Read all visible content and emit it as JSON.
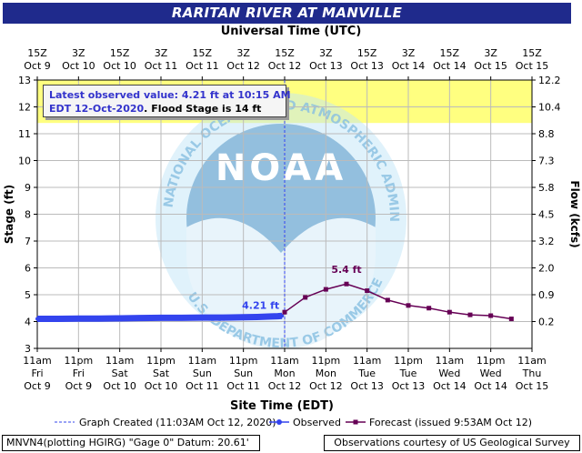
{
  "header": {
    "title": "RARITAN RIVER AT MANVILLE",
    "top_axis_title": "Universal Time (UTC)",
    "bottom_axis_title": "Site Time (EDT)"
  },
  "colors": {
    "title_bar": "#1f2a8c",
    "observed": "#3344ee",
    "forecast": "#660055",
    "flood_band": "#ffff80",
    "noaa_watermark": "#bfe3f5"
  },
  "latest": {
    "line1": "Latest observed value: 4.21 ft at 10:15 AM",
    "line2_date": "EDT 12-Oct-2020",
    "line2_sep": ". ",
    "flood_stage": "Flood Stage is 14 ft"
  },
  "legend": {
    "graph_created": "Graph Created (11:03AM Oct 12, 2020)",
    "observed": "Observed",
    "forecast": "Forecast (issued 9:53AM Oct 12)"
  },
  "footer": {
    "left": "MNVN4(plotting HGIRG) \"Gage 0\" Datum: 20.61'",
    "right": "Observations courtesy of US Geological Survey"
  },
  "watermark": {
    "logo_text": "NOAA",
    "ring_text": "NATIONAL OCEANIC AND ATMOSPHERIC ADMINISTRATION",
    "bottom_text": "U.S. DEPARTMENT OF COMMERCE"
  },
  "chart_data": {
    "type": "line",
    "xlabel": "Site Time (EDT)",
    "ylabel": "Stage (ft)",
    "y2label": "Flow (kcfs)",
    "ylim": [
      3,
      13
    ],
    "yticks": [
      3,
      4,
      5,
      6,
      7,
      8,
      9,
      10,
      11,
      12,
      13
    ],
    "y2ticks": [
      {
        "stage": 4,
        "label": "0.2"
      },
      {
        "stage": 5,
        "label": "0.9"
      },
      {
        "stage": 6,
        "label": "2.0"
      },
      {
        "stage": 7,
        "label": "3.2"
      },
      {
        "stage": 8,
        "label": "4.5"
      },
      {
        "stage": 9,
        "label": "5.8"
      },
      {
        "stage": 10,
        "label": "7.3"
      },
      {
        "stage": 11,
        "label": "8.8"
      },
      {
        "stage": 12,
        "label": "10.4"
      },
      {
        "stage": 13,
        "label": "12.2"
      }
    ],
    "x_hours_range": [
      0,
      144
    ],
    "x_ticks_local": [
      {
        "h": 0,
        "l1": "11am",
        "l2": "Fri",
        "l3": "Oct 9"
      },
      {
        "h": 12,
        "l1": "11pm",
        "l2": "Fri",
        "l3": "Oct 9"
      },
      {
        "h": 24,
        "l1": "11am",
        "l2": "Sat",
        "l3": "Oct 10"
      },
      {
        "h": 36,
        "l1": "11pm",
        "l2": "Sat",
        "l3": "Oct 10"
      },
      {
        "h": 48,
        "l1": "11am",
        "l2": "Sun",
        "l3": "Oct 11"
      },
      {
        "h": 60,
        "l1": "11pm",
        "l2": "Sun",
        "l3": "Oct 11"
      },
      {
        "h": 72,
        "l1": "11am",
        "l2": "Mon",
        "l3": "Oct 12"
      },
      {
        "h": 84,
        "l1": "11pm",
        "l2": "Mon",
        "l3": "Oct 12"
      },
      {
        "h": 96,
        "l1": "11am",
        "l2": "Tue",
        "l3": "Oct 13"
      },
      {
        "h": 108,
        "l1": "11pm",
        "l2": "Tue",
        "l3": "Oct 13"
      },
      {
        "h": 120,
        "l1": "11am",
        "l2": "Wed",
        "l3": "Oct 14"
      },
      {
        "h": 132,
        "l1": "11pm",
        "l2": "Wed",
        "l3": "Oct 14"
      },
      {
        "h": 144,
        "l1": "11am",
        "l2": "Thu",
        "l3": "Oct 15"
      }
    ],
    "x_ticks_utc": [
      {
        "h": 0,
        "l1": "15Z",
        "l2": "Oct 9"
      },
      {
        "h": 12,
        "l1": "3Z",
        "l2": "Oct 10"
      },
      {
        "h": 24,
        "l1": "15Z",
        "l2": "Oct 10"
      },
      {
        "h": 36,
        "l1": "3Z",
        "l2": "Oct 11"
      },
      {
        "h": 48,
        "l1": "15Z",
        "l2": "Oct 11"
      },
      {
        "h": 60,
        "l1": "3Z",
        "l2": "Oct 12"
      },
      {
        "h": 72,
        "l1": "15Z",
        "l2": "Oct 12"
      },
      {
        "h": 84,
        "l1": "3Z",
        "l2": "Oct 13"
      },
      {
        "h": 96,
        "l1": "15Z",
        "l2": "Oct 13"
      },
      {
        "h": 108,
        "l1": "3Z",
        "l2": "Oct 14"
      },
      {
        "h": 120,
        "l1": "15Z",
        "l2": "Oct 14"
      },
      {
        "h": 132,
        "l1": "3Z",
        "l2": "Oct 15"
      },
      {
        "h": 144,
        "l1": "15Z",
        "l2": "Oct 15"
      }
    ],
    "flood_stage": 14,
    "flood_band_range": [
      11.4,
      13
    ],
    "graph_created_h": 72,
    "series": [
      {
        "name": "Observed",
        "x_hours": [
          0,
          6,
          12,
          18,
          24,
          30,
          36,
          42,
          48,
          54,
          60,
          64,
          68,
          70,
          71.25
        ],
        "values": [
          4.1,
          4.1,
          4.11,
          4.11,
          4.12,
          4.13,
          4.14,
          4.14,
          4.15,
          4.15,
          4.16,
          4.17,
          4.19,
          4.2,
          4.21
        ]
      },
      {
        "name": "Forecast",
        "x_hours": [
          72,
          78,
          84,
          90,
          96,
          102,
          108,
          114,
          120,
          126,
          132,
          138
        ],
        "values": [
          4.35,
          4.9,
          5.2,
          5.4,
          5.15,
          4.8,
          4.6,
          4.5,
          4.35,
          4.25,
          4.22,
          4.1
        ]
      }
    ],
    "annotations": [
      {
        "text": "4.21 ft",
        "x_hours": 71.25,
        "value": 4.21
      },
      {
        "text": "5.4 ft",
        "x_hours": 90,
        "value": 5.4
      }
    ]
  }
}
